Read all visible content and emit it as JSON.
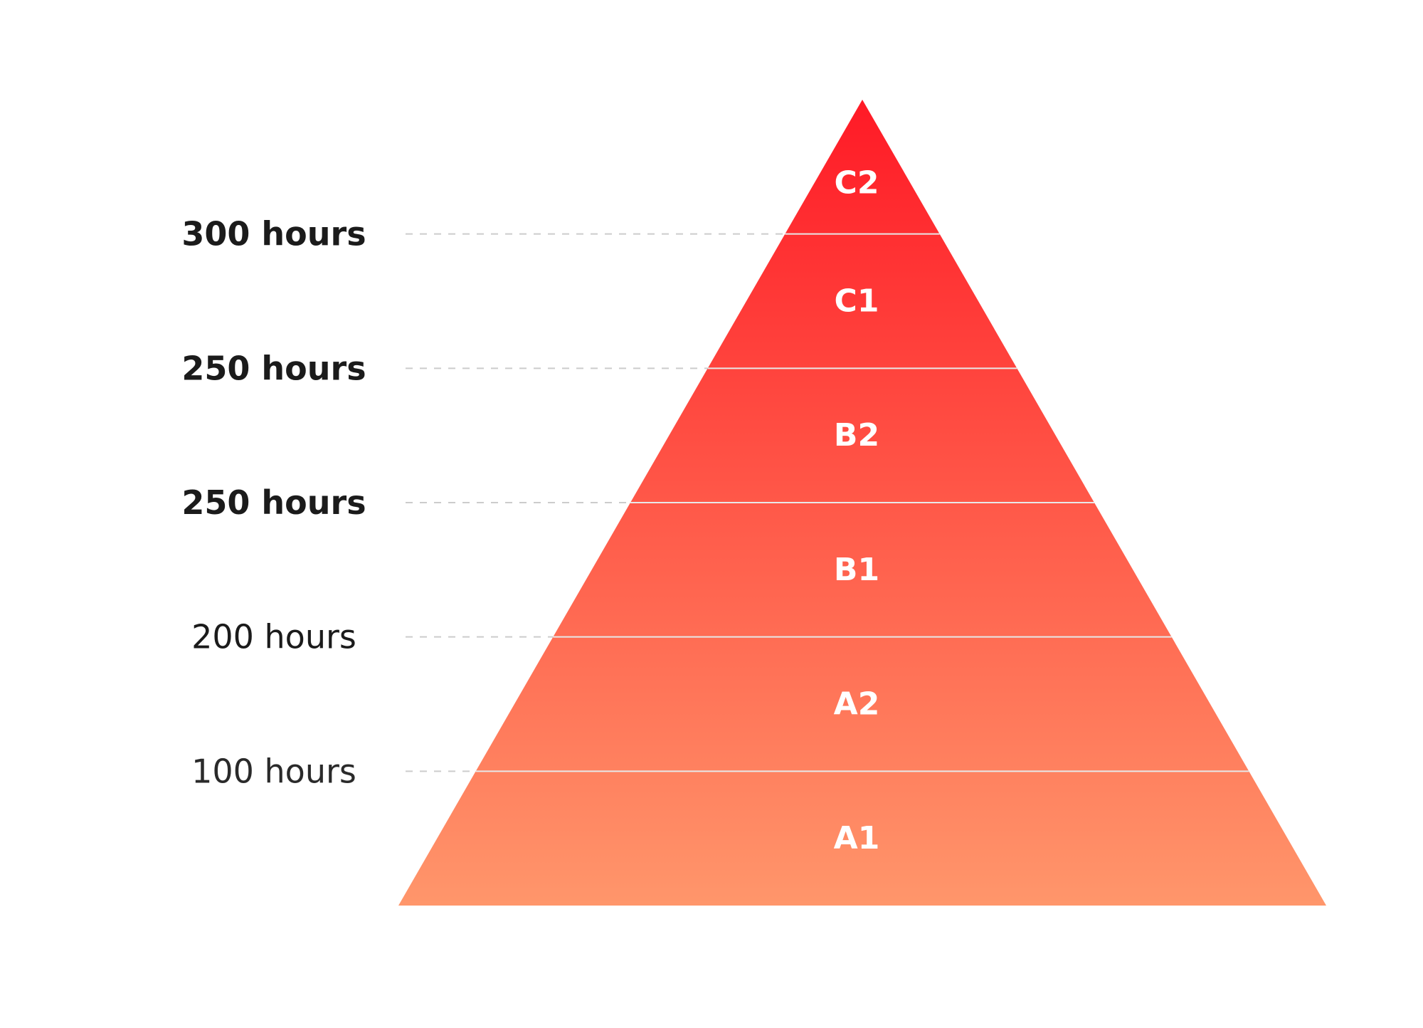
{
  "levels": [
    {
      "label": "C2"
    },
    {
      "label": "C1"
    },
    {
      "label": "B2"
    },
    {
      "label": "B1"
    },
    {
      "label": "A2"
    },
    {
      "label": "A1"
    }
  ],
  "hours": [
    {
      "text": "300 hours",
      "weight": "bold"
    },
    {
      "text": "250 hours",
      "weight": "bold"
    },
    {
      "text": "250 hours",
      "weight": "semibold"
    },
    {
      "text": "200 hours",
      "weight": "medium"
    },
    {
      "text": "100 hours",
      "weight": "regular"
    }
  ],
  "colors": {
    "top": "#ff1a26",
    "bottom": "#ff966b",
    "divider": "#e8e8e8",
    "dash": "#cccccc",
    "level_text": "#ffffff",
    "hour_text": "#1b1b1b"
  }
}
